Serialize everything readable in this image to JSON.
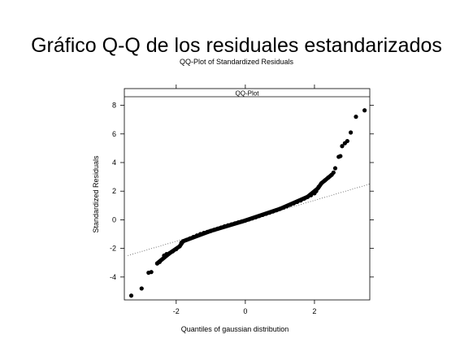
{
  "chart_data": {
    "type": "scatter",
    "title": "Gráfico Q-Q de los residuales estandarizados",
    "subtitle": "QQ-Plot of Standardized Residuals",
    "panel_label": "QQ-Plot",
    "xlabel": "Quantiles of gaussian distribution",
    "ylabel": "Standardized Residuals",
    "xlim": [
      -3.5,
      3.6
    ],
    "ylim": [
      -5.6,
      8.6
    ],
    "x_ticks": [
      -2,
      0,
      2
    ],
    "y_ticks": [
      -4,
      -2,
      0,
      2,
      4,
      6,
      8
    ],
    "grid": false,
    "reference_line": {
      "style": "dotted",
      "points": [
        [
          -3.4,
          -2.5
        ],
        [
          3.6,
          2.5
        ]
      ]
    },
    "series": [
      {
        "values": [
          [
            -3.3,
            -5.3
          ],
          [
            -3.0,
            -4.8
          ],
          [
            -2.8,
            -3.7
          ],
          [
            -2.72,
            -3.65
          ],
          [
            -2.55,
            -3.05
          ],
          [
            -2.48,
            -2.95
          ],
          [
            -2.35,
            -2.5
          ],
          [
            -2.28,
            -2.4
          ],
          [
            -2.2,
            -2.35
          ],
          [
            -2.1,
            -2.2
          ],
          [
            -2.0,
            -2.05
          ],
          [
            -1.9,
            -1.85
          ],
          [
            -1.85,
            -1.6
          ],
          [
            -1.8,
            -1.5
          ],
          [
            -1.7,
            -1.4
          ],
          [
            -1.6,
            -1.3
          ],
          [
            -1.5,
            -1.2
          ],
          [
            -1.4,
            -1.1
          ],
          [
            -1.3,
            -1.0
          ],
          [
            -1.2,
            -0.92
          ],
          [
            -1.1,
            -0.85
          ],
          [
            -1.0,
            -0.78
          ],
          [
            -0.9,
            -0.7
          ],
          [
            -0.8,
            -0.62
          ],
          [
            -0.7,
            -0.54
          ],
          [
            -0.6,
            -0.46
          ],
          [
            -0.5,
            -0.39
          ],
          [
            -0.4,
            -0.32
          ],
          [
            -0.3,
            -0.25
          ],
          [
            -0.2,
            -0.18
          ],
          [
            -0.1,
            -0.12
          ],
          [
            0.0,
            -0.05
          ],
          [
            0.1,
            0.02
          ],
          [
            0.2,
            0.1
          ],
          [
            0.3,
            0.18
          ],
          [
            0.4,
            0.26
          ],
          [
            0.5,
            0.34
          ],
          [
            0.6,
            0.42
          ],
          [
            0.7,
            0.5
          ],
          [
            0.8,
            0.58
          ],
          [
            0.9,
            0.67
          ],
          [
            1.0,
            0.76
          ],
          [
            1.1,
            0.85
          ],
          [
            1.2,
            0.95
          ],
          [
            1.3,
            1.05
          ],
          [
            1.4,
            1.15
          ],
          [
            1.5,
            1.25
          ],
          [
            1.6,
            1.35
          ],
          [
            1.7,
            1.48
          ],
          [
            1.8,
            1.6
          ],
          [
            1.9,
            1.72
          ],
          [
            2.0,
            1.85
          ],
          [
            2.05,
            2.0
          ],
          [
            2.12,
            2.3
          ],
          [
            2.2,
            2.55
          ],
          [
            2.3,
            2.75
          ],
          [
            2.4,
            2.95
          ],
          [
            2.5,
            3.15
          ],
          [
            2.55,
            3.3
          ],
          [
            2.6,
            3.6
          ],
          [
            2.7,
            4.4
          ],
          [
            2.75,
            4.45
          ],
          [
            2.8,
            5.15
          ],
          [
            2.88,
            5.35
          ],
          [
            2.95,
            5.5
          ],
          [
            3.05,
            6.1
          ],
          [
            3.2,
            7.2
          ],
          [
            3.45,
            7.65
          ]
        ]
      }
    ],
    "dense_segments": [
      [
        [
          -2.55,
          -3.05
        ],
        [
          -2.2,
          -2.35
        ],
        [
          -1.9,
          -1.85
        ],
        [
          -1.8,
          -1.5
        ],
        [
          -1.0,
          -0.78
        ],
        [
          0.0,
          -0.05
        ],
        [
          1.0,
          0.76
        ],
        [
          1.8,
          1.6
        ],
        [
          2.1,
          2.2
        ],
        [
          2.2,
          2.55
        ],
        [
          2.5,
          3.15
        ]
      ]
    ],
    "colors": {
      "points": "#000000",
      "axes": "#000000",
      "reference_line": "#555555"
    }
  }
}
